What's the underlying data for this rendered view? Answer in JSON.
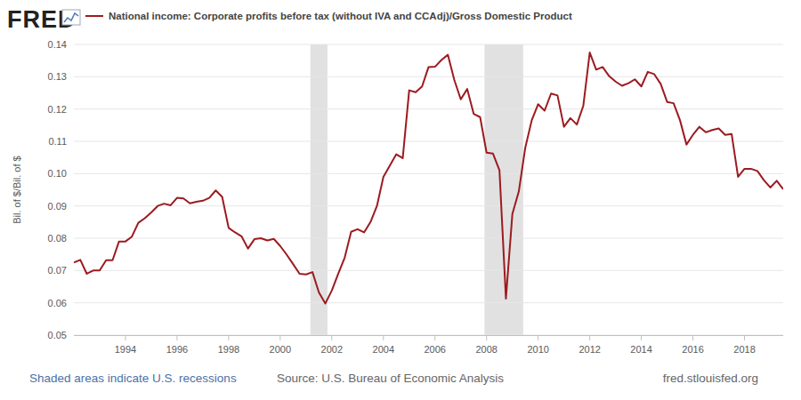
{
  "chart_data": {
    "type": "line",
    "brand": "FRED",
    "y_label": "Bil. of $/Bil. of $",
    "note": "Shaded areas indicate U.S. recessions",
    "source": "Source: U.S. Bureau of Economic Analysis",
    "credit": "fred.stlouisfed.org",
    "legend": "top-left",
    "grid": true,
    "xlim": [
      1992,
      2019.5
    ],
    "xticks": [
      1994,
      1996,
      1998,
      2000,
      2002,
      2004,
      2006,
      2008,
      2010,
      2012,
      2014,
      2016,
      2018
    ],
    "ylim": [
      0.05,
      0.14
    ],
    "yticks": [
      0.05,
      0.06,
      0.07,
      0.08,
      0.09,
      {
        "value": 0.1,
        "label": "0.10"
      },
      0.11,
      0.12,
      0.13,
      0.14
    ],
    "recessions": [
      {
        "start": 2001.17,
        "end": 2001.83
      },
      {
        "start": 2007.92,
        "end": 2009.42
      }
    ],
    "x": [
      1992,
      1992.25,
      1992.5,
      1992.75,
      1993,
      1993.25,
      1993.5,
      1993.75,
      1994,
      1994.25,
      1994.5,
      1994.75,
      1995,
      1995.25,
      1995.5,
      1995.75,
      1996,
      1996.25,
      1996.5,
      1996.75,
      1997,
      1997.25,
      1997.5,
      1997.75,
      1998,
      1998.25,
      1998.5,
      1998.75,
      1999,
      1999.25,
      1999.5,
      1999.75,
      2000,
      2000.25,
      2000.5,
      2000.75,
      2001,
      2001.25,
      2001.5,
      2001.75,
      2002,
      2002.25,
      2002.5,
      2002.75,
      2003,
      2003.25,
      2003.5,
      2003.75,
      2004,
      2004.25,
      2004.5,
      2004.75,
      2005,
      2005.25,
      2005.5,
      2005.75,
      2006,
      2006.25,
      2006.5,
      2006.75,
      2007,
      2007.25,
      2007.5,
      2007.75,
      2008,
      2008.25,
      2008.5,
      2008.75,
      2009,
      2009.25,
      2009.5,
      2009.75,
      2010,
      2010.25,
      2010.5,
      2010.75,
      2011,
      2011.25,
      2011.5,
      2011.75,
      2012,
      2012.25,
      2012.5,
      2012.75,
      2013,
      2013.25,
      2013.5,
      2013.75,
      2014,
      2014.25,
      2014.5,
      2014.75,
      2015,
      2015.25,
      2015.5,
      2015.75,
      2016,
      2016.25,
      2016.5,
      2016.75,
      2017,
      2017.25,
      2017.5,
      2017.75,
      2018,
      2018.25,
      2018.5,
      2018.75,
      2019,
      2019.25,
      2019.5
    ],
    "series": [
      {
        "name": "National income: Corporate profits before tax (without IVA and CCAdj)/Gross Domestic Product",
        "color": "#9c1b20",
        "values": [
          0.0725,
          0.0733,
          0.069,
          0.07,
          0.07,
          0.0732,
          0.0732,
          0.079,
          0.079,
          0.0805,
          0.0848,
          0.0862,
          0.088,
          0.09,
          0.0907,
          0.0902,
          0.0925,
          0.0923,
          0.0908,
          0.0913,
          0.0916,
          0.0925,
          0.0948,
          0.0928,
          0.0832,
          0.0818,
          0.0806,
          0.0768,
          0.0797,
          0.08,
          0.0793,
          0.0798,
          0.0776,
          0.0749,
          0.072,
          0.069,
          0.0688,
          0.0695,
          0.0632,
          0.0598,
          0.0638,
          0.069,
          0.074,
          0.082,
          0.0828,
          0.0818,
          0.085,
          0.09,
          0.099,
          0.1025,
          0.106,
          0.1048,
          0.1258,
          0.1252,
          0.127,
          0.133,
          0.1331,
          0.1352,
          0.1368,
          0.129,
          0.123,
          0.1262,
          0.1185,
          0.1175,
          0.1065,
          0.1062,
          0.101,
          0.0613,
          0.0875,
          0.0945,
          0.108,
          0.1165,
          0.1215,
          0.1195,
          0.1248,
          0.1242,
          0.1145,
          0.1172,
          0.1152,
          0.121,
          0.1375,
          0.1322,
          0.133,
          0.1302,
          0.1285,
          0.1272,
          0.128,
          0.1292,
          0.127,
          0.1315,
          0.1308,
          0.1278,
          0.1222,
          0.1218,
          0.1165,
          0.109,
          0.112,
          0.1145,
          0.1128,
          0.1135,
          0.114,
          0.112,
          0.1123,
          0.099,
          0.1015,
          0.1015,
          0.1008,
          0.098,
          0.0957,
          0.0978,
          0.0952
        ]
      }
    ]
  }
}
